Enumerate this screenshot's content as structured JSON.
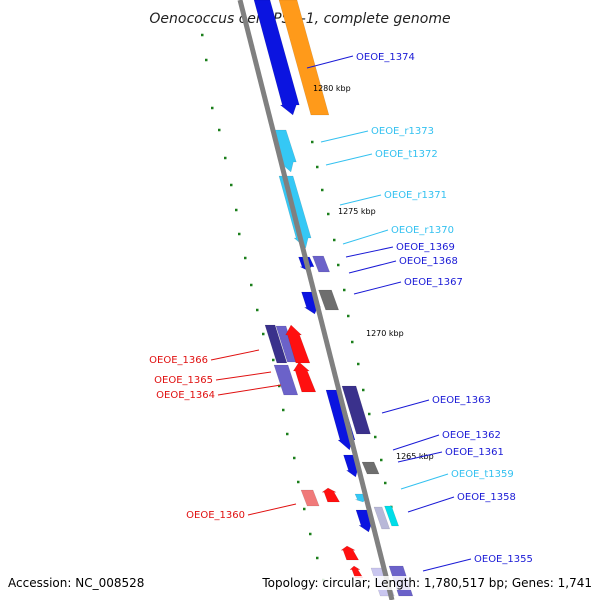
{
  "title": "Oenococcus oeni PSU-1, complete genome",
  "footer": {
    "accession": "Accession: NC_008528",
    "summary": "Topology: circular; Length: 1,780,517 bp; Genes: 1,741"
  },
  "colors": {
    "cds_blue": "#0b14e0",
    "cds_dark": "#3a318c",
    "cds_purple": "#6b62c9",
    "cds_gray": "#6e6e6e",
    "orange": "#ff9a1a",
    "rna_cyan": "#35c8f5",
    "trna_aqua": "#00dde8",
    "red": "#ff1010",
    "pink": "#f07a7a",
    "backbone": "#808080",
    "tick_green": "#1b7f1b",
    "label_blue": "#1a1ad6",
    "label_cyan": "#34c1f0",
    "label_red": "#e01010"
  },
  "scale_labels": [
    "1280 kbp",
    "1275 kbp",
    "1270 kbp",
    "1265 kbp"
  ],
  "gene_labels": [
    {
      "id": "OEOE_1374",
      "kind": "cds"
    },
    {
      "id": "OEOE_r1373",
      "kind": "rna"
    },
    {
      "id": "OEOE_t1372",
      "kind": "rna"
    },
    {
      "id": "OEOE_r1371",
      "kind": "rna"
    },
    {
      "id": "OEOE_r1370",
      "kind": "rna"
    },
    {
      "id": "OEOE_1369",
      "kind": "cds"
    },
    {
      "id": "OEOE_1368",
      "kind": "cds"
    },
    {
      "id": "OEOE_1367",
      "kind": "cds"
    },
    {
      "id": "OEOE_1366",
      "kind": "red"
    },
    {
      "id": "OEOE_1365",
      "kind": "red"
    },
    {
      "id": "OEOE_1364",
      "kind": "red"
    },
    {
      "id": "OEOE_1363",
      "kind": "cds"
    },
    {
      "id": "OEOE_1362",
      "kind": "cds"
    },
    {
      "id": "OEOE_1361",
      "kind": "cds"
    },
    {
      "id": "OEOE_t1359",
      "kind": "rna"
    },
    {
      "id": "OEOE_1358",
      "kind": "cds"
    },
    {
      "id": "OEOE_1360",
      "kind": "red"
    },
    {
      "id": "OEOE_1355",
      "kind": "cds"
    }
  ]
}
